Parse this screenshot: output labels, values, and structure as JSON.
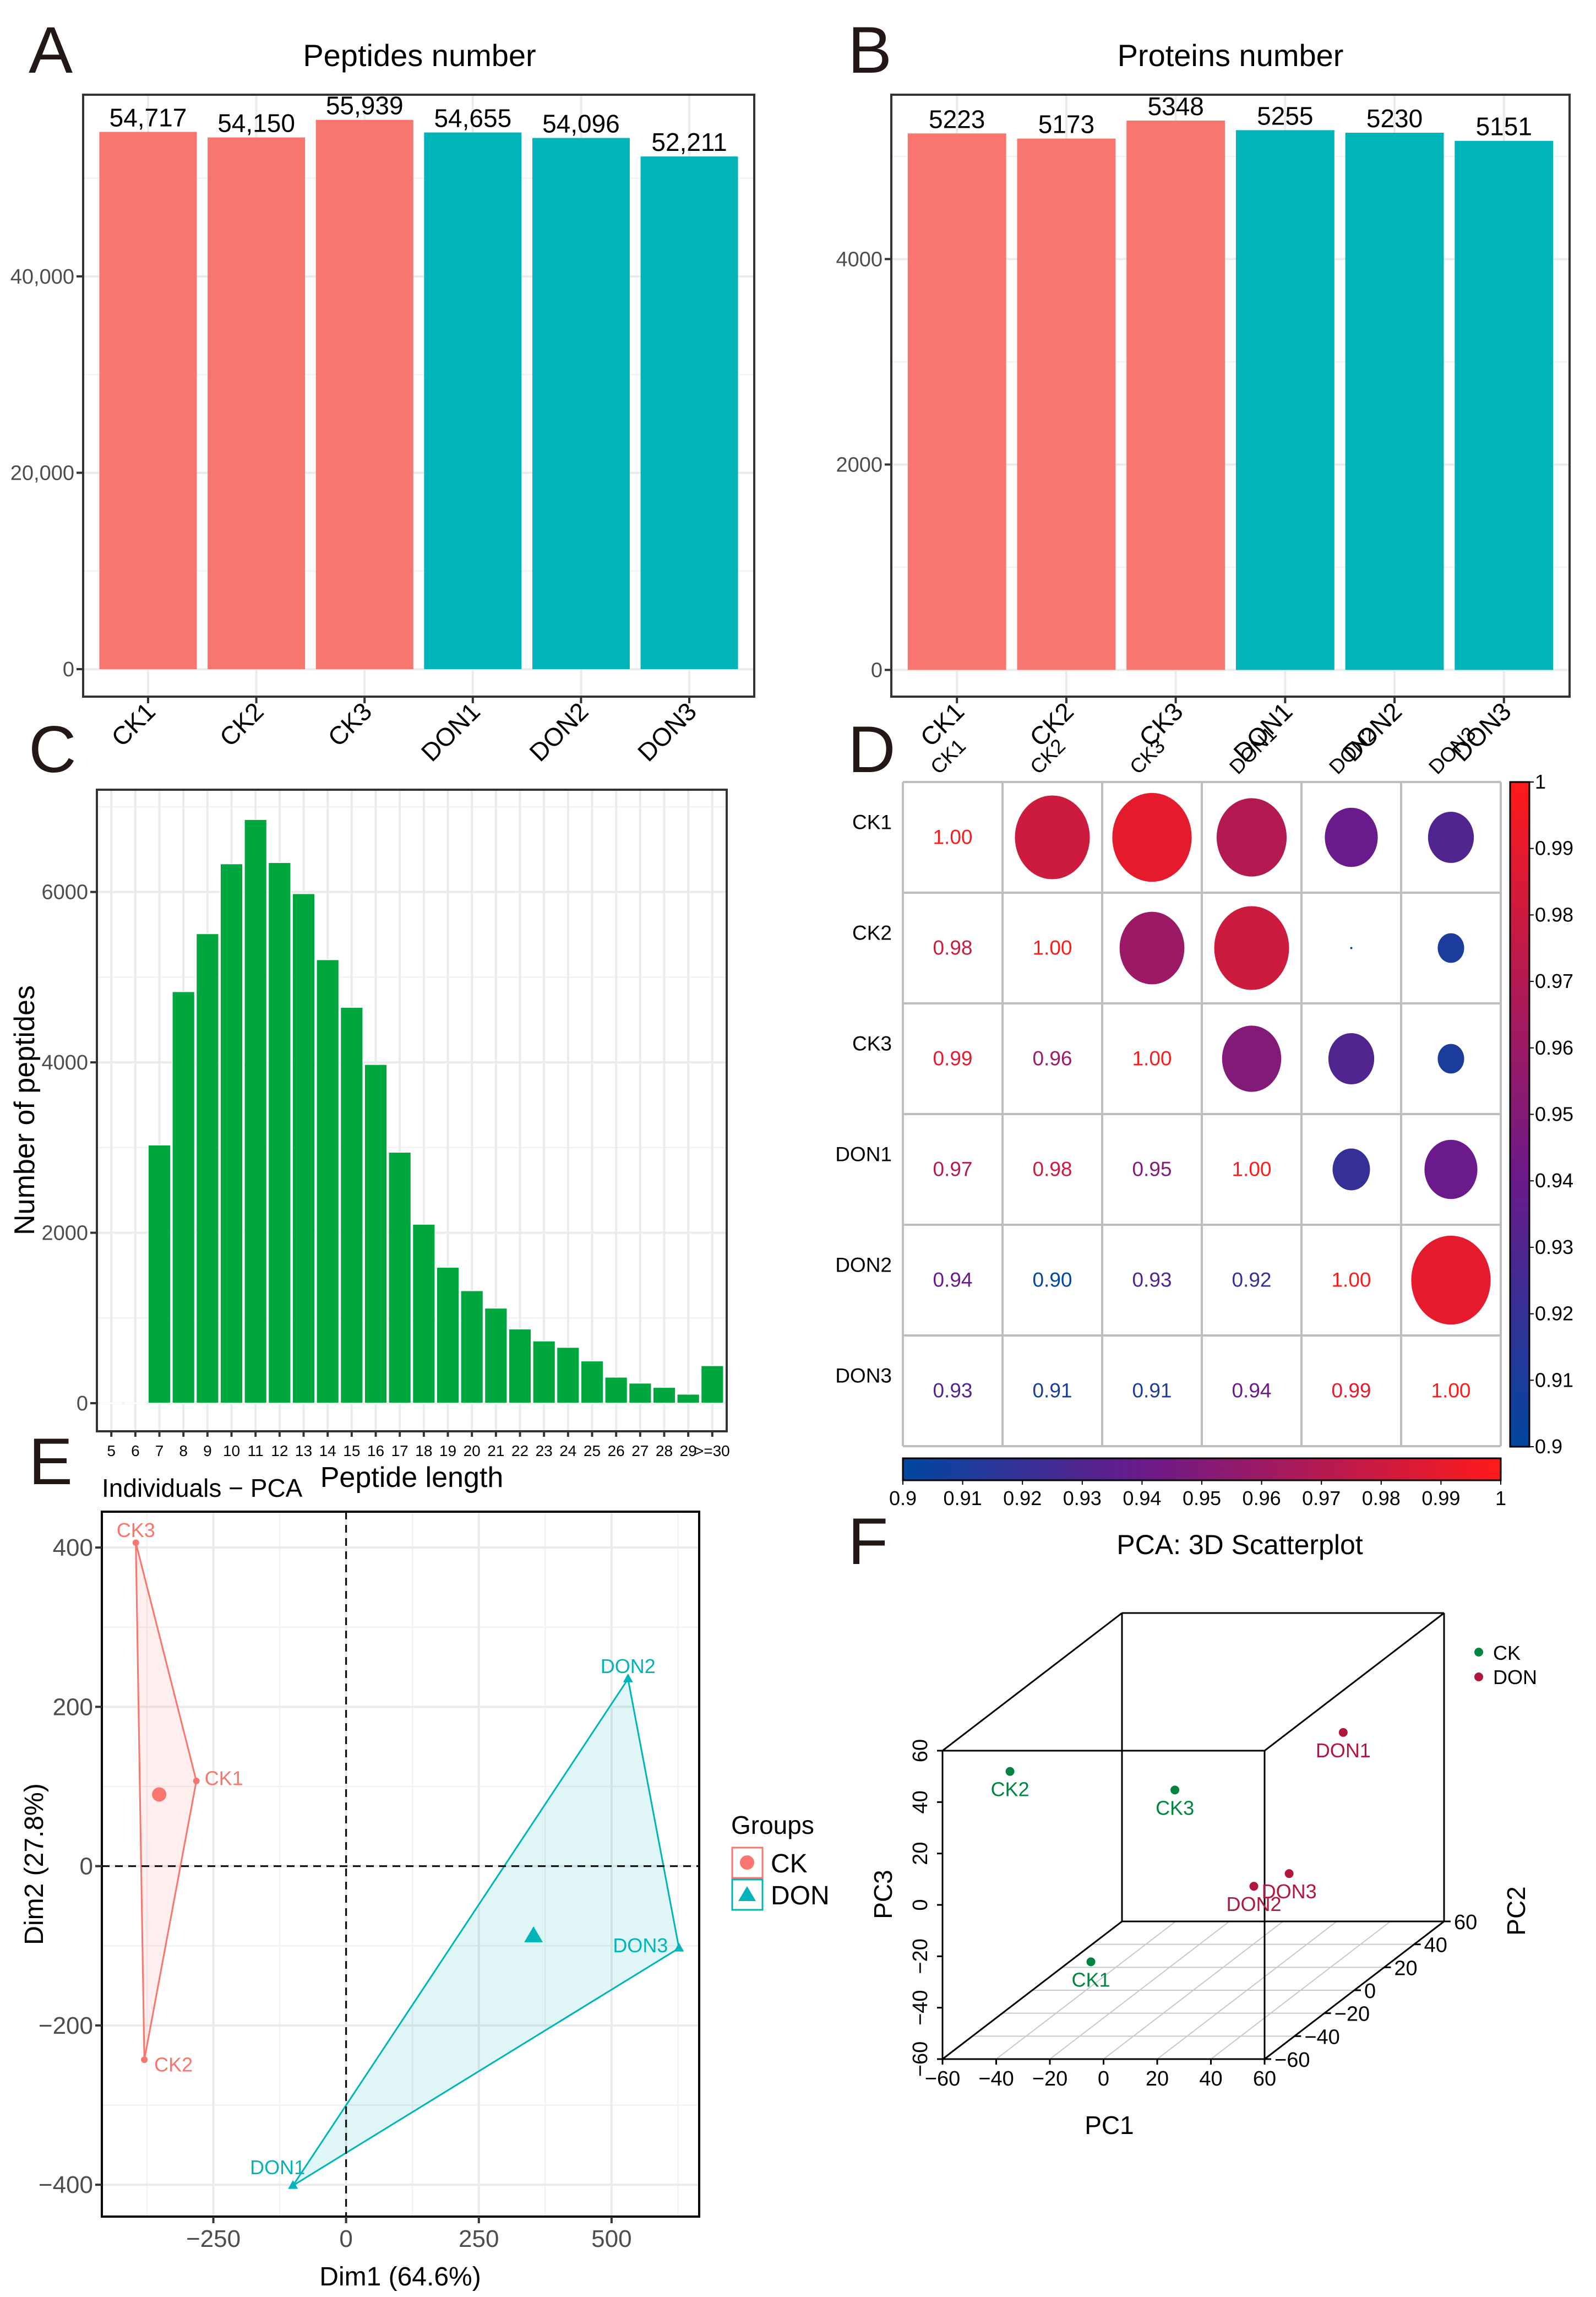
{
  "figure": {
    "panel_letters": [
      "A",
      "B",
      "C",
      "D",
      "E",
      "F"
    ]
  },
  "chart_data": [
    {
      "id": "A",
      "type": "bar",
      "title": "Peptides number",
      "categories": [
        "CK1",
        "CK2",
        "CK3",
        "DON1",
        "DON2",
        "DON3"
      ],
      "values": [
        54717,
        54150,
        55939,
        54655,
        54096,
        52211
      ],
      "value_labels": [
        "54,717",
        "54,150",
        "55,939",
        "54,655",
        "54,096",
        "52,211"
      ],
      "groups": [
        "CK",
        "CK",
        "CK",
        "DON",
        "DON",
        "DON"
      ],
      "group_colors": {
        "CK": "#F8766D",
        "DON": "#00B4B8"
      },
      "yticks": [
        0,
        20000,
        40000
      ],
      "ytick_labels": [
        "0",
        "20,000",
        "40,000"
      ],
      "ylim": [
        -2800,
        58500
      ],
      "xlabel": "",
      "ylabel": "",
      "grid": true
    },
    {
      "id": "B",
      "type": "bar",
      "title": "Proteins number",
      "categories": [
        "CK1",
        "CK2",
        "CK3",
        "DON1",
        "DON2",
        "DON3"
      ],
      "values": [
        5223,
        5173,
        5348,
        5255,
        5230,
        5151
      ],
      "value_labels": [
        "5223",
        "5173",
        "5348",
        "5255",
        "5230",
        "5151"
      ],
      "groups": [
        "CK",
        "CK",
        "CK",
        "DON",
        "DON",
        "DON"
      ],
      "group_colors": {
        "CK": "#F8766D",
        "DON": "#00B4B8"
      },
      "yticks": [
        0,
        2000,
        4000
      ],
      "ytick_labels": [
        "0",
        "2000",
        "4000"
      ],
      "ylim": [
        -260,
        5600
      ],
      "xlabel": "",
      "ylabel": "",
      "grid": true
    },
    {
      "id": "C",
      "type": "bar",
      "title": "",
      "categories": [
        "5",
        "6",
        "7",
        "8",
        "9",
        "10",
        "11",
        "12",
        "13",
        "14",
        "15",
        "16",
        "17",
        "18",
        "19",
        "20",
        "21",
        "22",
        "23",
        "24",
        "25",
        "26",
        "27",
        "28",
        "29",
        ">=30"
      ],
      "values": [
        5,
        5,
        3030,
        4830,
        5510,
        6330,
        6850,
        6345,
        5980,
        5205,
        4645,
        3975,
        2945,
        2100,
        1595,
        1320,
        1115,
        870,
        730,
        655,
        495,
        305,
        235,
        185,
        105,
        440
      ],
      "color": "#00A63E",
      "xlabel": "Peptide length",
      "ylabel": "Number of peptides",
      "yticks": [
        0,
        2000,
        4000,
        6000
      ],
      "ytick_labels": [
        "0",
        "2000",
        "4000",
        "6000"
      ],
      "ylim": [
        -330,
        7200
      ],
      "grid": true
    },
    {
      "id": "D",
      "type": "heatmap",
      "title": "",
      "labels": [
        "CK1",
        "CK2",
        "CK3",
        "DON1",
        "DON2",
        "DON3"
      ],
      "matrix": [
        [
          1.0,
          0.98,
          0.99,
          0.97,
          0.94,
          0.93
        ],
        [
          0.98,
          1.0,
          0.96,
          0.98,
          0.9,
          0.91
        ],
        [
          0.99,
          0.96,
          1.0,
          0.95,
          0.93,
          0.91
        ],
        [
          0.97,
          0.98,
          0.95,
          1.0,
          0.92,
          0.94
        ],
        [
          0.94,
          0.9,
          0.93,
          0.92,
          1.0,
          0.99
        ],
        [
          0.93,
          0.91,
          0.91,
          0.94,
          0.99,
          1.0
        ]
      ],
      "lower_display": "number",
      "upper_display": "circle",
      "color_range": [
        0.9,
        1.0
      ],
      "colorbar_ticks": [
        0.9,
        0.91,
        0.92,
        0.93,
        0.94,
        0.95,
        0.96,
        0.97,
        0.98,
        0.99,
        1
      ],
      "colorbar_tick_labels": [
        "0.9",
        "0.91",
        "0.92",
        "0.93",
        "0.94",
        "0.95",
        "0.96",
        "0.97",
        "0.98",
        "0.99",
        "1"
      ],
      "colors": {
        "low": "#0047A0",
        "mid": "#6A1A8A",
        "high": "#FF1A1A"
      }
    },
    {
      "id": "E",
      "type": "scatter",
      "title": "Individuals − PCA",
      "xlabel": "Dim1 (64.6%)",
      "ylabel": "Dim2 (27.8%)",
      "xlim": [
        -460,
        665
      ],
      "ylim": [
        -440,
        445
      ],
      "xticks": [
        -250,
        0,
        250,
        500
      ],
      "xtick_labels": [
        "−250",
        "0",
        "250",
        "500"
      ],
      "yticks": [
        -400,
        -200,
        0,
        200,
        400
      ],
      "ytick_labels": [
        "−400",
        "−200",
        "0",
        "200",
        "400"
      ],
      "points": [
        {
          "label": "CK1",
          "group": "CK",
          "x": -282,
          "y": 107
        },
        {
          "label": "CK2",
          "group": "CK",
          "x": -380,
          "y": -243
        },
        {
          "label": "CK3",
          "group": "CK",
          "x": -396,
          "y": 406
        },
        {
          "label": "DON1",
          "group": "DON",
          "x": -100,
          "y": -401
        },
        {
          "label": "DON2",
          "group": "DON",
          "x": 531,
          "y": 235
        },
        {
          "label": "DON3",
          "group": "DON",
          "x": 627,
          "y": -103
        }
      ],
      "centroids": [
        {
          "group": "CK",
          "x": -352,
          "y": 90
        },
        {
          "group": "DON",
          "x": 353,
          "y": -88
        }
      ],
      "legend": {
        "title": "Groups",
        "position": "right",
        "items": [
          {
            "label": "CK",
            "shape": "circle",
            "color": "#F8766D"
          },
          {
            "label": "DON",
            "shape": "triangle",
            "color": "#00B4B8"
          }
        ]
      },
      "group_colors": {
        "CK": "#F8766D",
        "DON": "#00B4B8"
      },
      "reference_lines": {
        "x": 0,
        "y": 0
      }
    },
    {
      "id": "F",
      "type": "scatter",
      "title": "PCA: 3D Scatterplot",
      "xlabel": "PC1",
      "ylabel": "PC2",
      "zlabel": "PC3",
      "xlim": [
        -60,
        60
      ],
      "ylim": [
        -60,
        60
      ],
      "zlim": [
        -60,
        60
      ],
      "xticks": [
        -60,
        -40,
        -20,
        0,
        20,
        40,
        60
      ],
      "xtick_labels": [
        "−60",
        "−40",
        "−20",
        "0",
        "20",
        "40",
        "60"
      ],
      "yticks": [
        -60,
        -40,
        -20,
        0,
        20,
        40,
        60
      ],
      "ytick_labels": [
        "−60",
        "−40",
        "−20",
        "0",
        "20",
        "40",
        "60"
      ],
      "zticks": [
        -60,
        -40,
        -20,
        0,
        20,
        40,
        60
      ],
      "ztick_labels": [
        "−60",
        "−40",
        "−20",
        "0",
        "20",
        "40",
        "60"
      ],
      "points": [
        {
          "label": "CK1",
          "group": "CK",
          "pc1": -27,
          "pc2": -20,
          "pc3": -40
        },
        {
          "label": "CK2",
          "group": "CK",
          "pc1": -46,
          "pc2": -40,
          "pc3": 43
        },
        {
          "label": "CK3",
          "group": "CK",
          "pc1": -18,
          "pc2": 20,
          "pc3": 9
        },
        {
          "label": "DON1",
          "group": "DON",
          "pc1": 28,
          "pc2": 50,
          "pc3": 18
        },
        {
          "label": "DON2",
          "group": "DON",
          "pc1": 17,
          "pc2": 10,
          "pc3": -24
        },
        {
          "label": "DON3",
          "group": "DON",
          "pc1": 19,
          "pc2": 30,
          "pc3": -28
        }
      ],
      "legend": {
        "position": "top-right",
        "items": [
          {
            "label": "CK",
            "color": "#00843F"
          },
          {
            "label": "DON",
            "color": "#B0173F"
          }
        ]
      },
      "group_colors": {
        "CK": "#00843F",
        "DON": "#B0173F"
      }
    }
  ]
}
